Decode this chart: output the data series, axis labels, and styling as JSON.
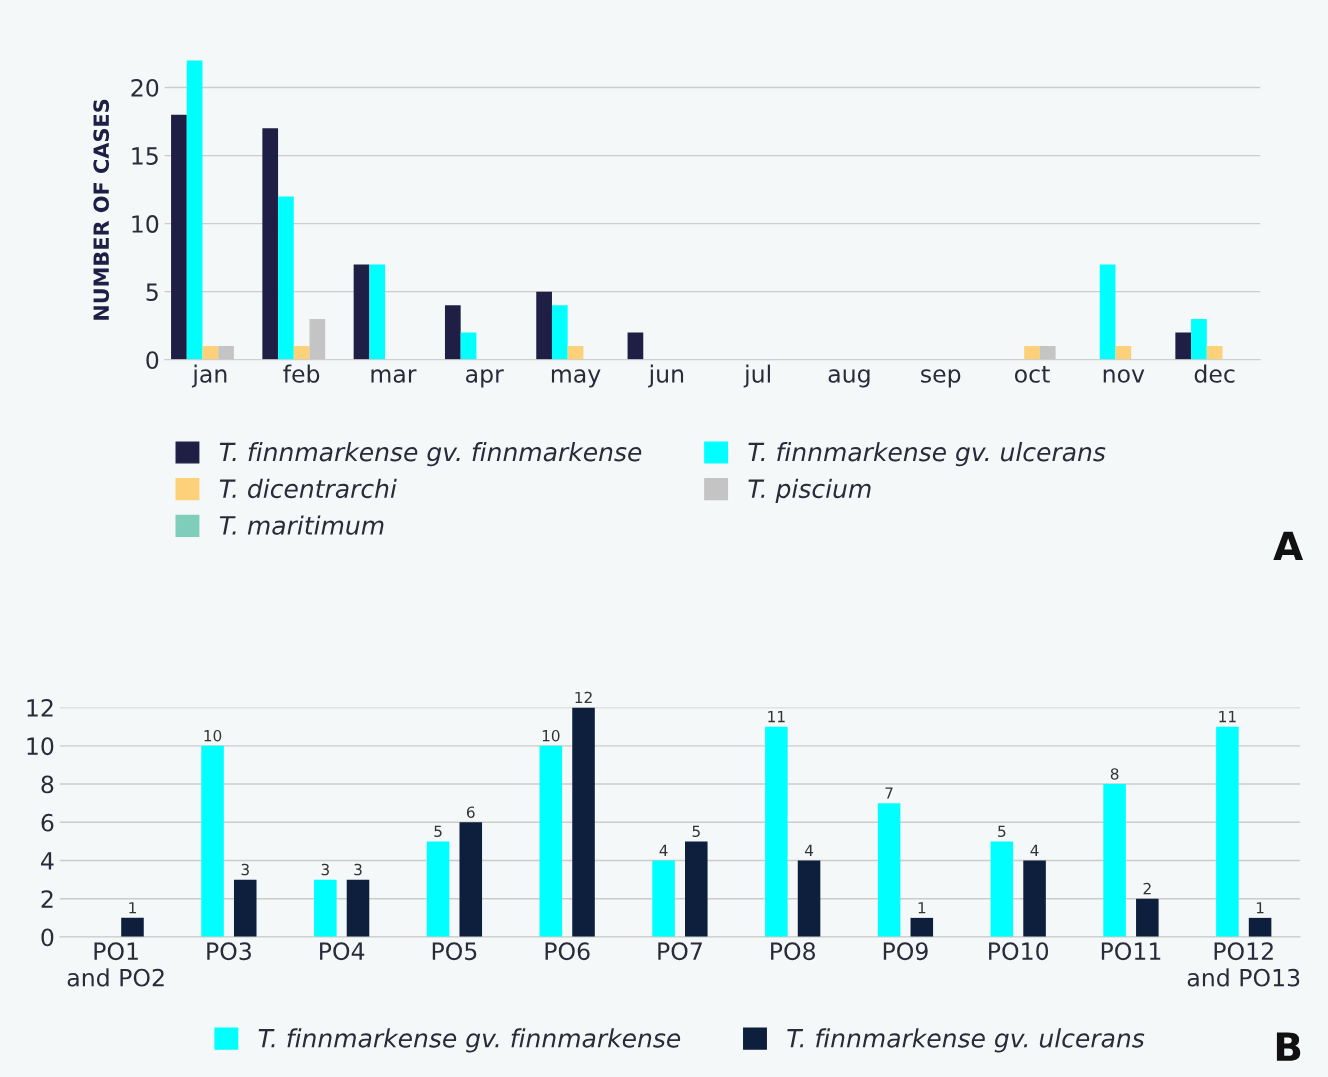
{
  "chart_data": [
    {
      "type": "bar",
      "categories": [
        "jan",
        "feb",
        "mar",
        "apr",
        "may",
        "jun",
        "jul",
        "aug",
        "sep",
        "oct",
        "nov",
        "dec"
      ],
      "ylabel": "NUMBER OF CASES",
      "ylim": [
        0,
        22
      ],
      "yticks": [
        0,
        5,
        10,
        15,
        20
      ],
      "grid": "y",
      "legend": "bottom left",
      "annotations": [
        "A"
      ],
      "series": [
        {
          "name": "T. finnmarkense gv. finnmarkense",
          "color": "#1f1f45",
          "values": [
            18,
            17,
            7,
            4,
            5,
            2,
            null,
            null,
            null,
            null,
            null,
            2
          ]
        },
        {
          "name": "T. finnmarkense gv. ulcerans",
          "color": "#00ffff",
          "values": [
            22,
            12,
            7,
            2,
            4,
            null,
            null,
            null,
            null,
            null,
            7,
            3
          ]
        },
        {
          "name": "T. dicentrarchi",
          "color": "#fdd17a",
          "values": [
            1,
            1,
            null,
            null,
            1,
            null,
            null,
            null,
            null,
            1,
            1,
            1
          ]
        },
        {
          "name": "T. piscium",
          "color": "#c4c4c4",
          "values": [
            1,
            3,
            null,
            null,
            null,
            null,
            null,
            null,
            null,
            1,
            null,
            null
          ]
        },
        {
          "name": "T. maritimum",
          "color": "#7fcdbb",
          "values": [
            null,
            null,
            null,
            null,
            null,
            null,
            null,
            null,
            null,
            null,
            null,
            null
          ]
        }
      ]
    },
    {
      "type": "bar",
      "categories": [
        "PO1\nand PO2",
        "PO3",
        "PO4",
        "PO5",
        "PO6",
        "PO7",
        "PO8",
        "PO9",
        "PO10",
        "PO11",
        "PO12\nand PO13"
      ],
      "ylim": [
        0,
        12
      ],
      "yticks": [
        0,
        2,
        4,
        6,
        8,
        10,
        12
      ],
      "grid": "y",
      "legend": "bottom",
      "data_labels": true,
      "annotations": [
        "B"
      ],
      "series": [
        {
          "name": "T. finnmarkense gv. finnmarkense",
          "color": "#00ffff",
          "values": [
            null,
            10,
            3,
            5,
            10,
            4,
            11,
            7,
            5,
            8,
            11
          ]
        },
        {
          "name": "T. finnmarkense gv. ulcerans",
          "color": "#0d1f3c",
          "values": [
            1,
            3,
            3,
            6,
            12,
            5,
            4,
            1,
            4,
            2,
            1
          ]
        }
      ]
    }
  ]
}
